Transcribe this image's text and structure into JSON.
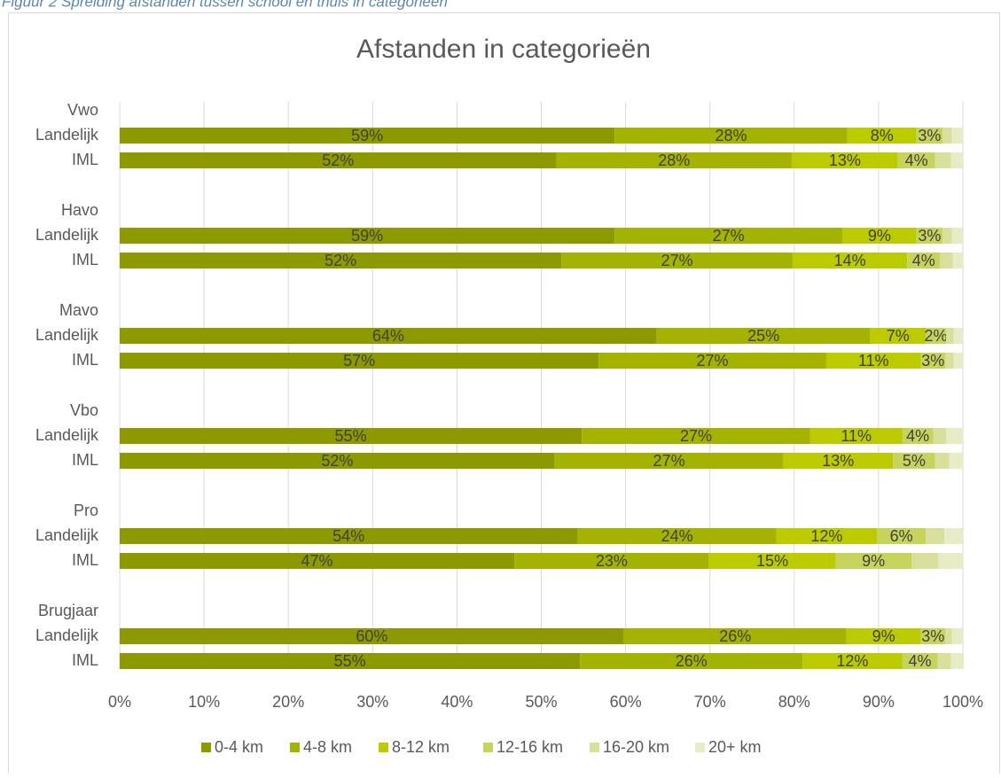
{
  "caption": "Figuur 2 Spreiding afstanden tussen school en thuis in categorieën",
  "chart_data": {
    "type": "bar",
    "orientation": "horizontal",
    "stacked": true,
    "title": "Afstanden in categorieën",
    "groups": [
      "Vwo",
      "Havo",
      "Mavo",
      "Vbo",
      "Pro",
      "Brugjaar"
    ],
    "categories": [
      "Landelijk",
      "IML",
      "Landelijk",
      "IML",
      "Landelijk",
      "IML",
      "Landelijk",
      "IML",
      "Landelijk",
      "IML",
      "Landelijk",
      "IML"
    ],
    "series": [
      {
        "name": "0-4 km",
        "color": "#8c9a00",
        "values": [
          58.7,
          51.8,
          58.7,
          52.4,
          63.7,
          56.8,
          54.8,
          51.6,
          54.3,
          46.8,
          59.8,
          54.6
        ],
        "value_labels": [
          "59%",
          "52%",
          "59%",
          "52%",
          "64%",
          "57%",
          "55%",
          "52%",
          "54%",
          "47%",
          "60%",
          "55%"
        ]
      },
      {
        "name": "4-8 km",
        "color": "#a4b200",
        "values": [
          27.6,
          27.9,
          27.0,
          27.4,
          25.3,
          27.0,
          27.1,
          27.1,
          23.6,
          23.1,
          26.4,
          26.4
        ],
        "value_labels": [
          "28%",
          "28%",
          "27%",
          "27%",
          "25%",
          "27%",
          "27%",
          "27%",
          "24%",
          "23%",
          "26%",
          "26%"
        ]
      },
      {
        "name": "8-12 km",
        "color": "#bccb00",
        "values": [
          8.2,
          12.6,
          8.8,
          13.6,
          6.6,
          11.2,
          10.9,
          13.0,
          11.9,
          15.0,
          8.8,
          11.8
        ],
        "value_labels": [
          "8%",
          "13%",
          "9%",
          "14%",
          "7%",
          "11%",
          "11%",
          "13%",
          "12%",
          "15%",
          "9%",
          "12%"
        ]
      },
      {
        "name": "12-16 km",
        "color": "#c6d45c",
        "values": [
          3.1,
          4.4,
          3.1,
          3.9,
          2.4,
          2.9,
          3.7,
          5.0,
          5.8,
          9.0,
          2.9,
          4.2
        ],
        "value_labels": [
          "3%",
          "4%",
          "3%",
          "4%",
          "2%",
          "3%",
          "4%",
          "5%",
          "6%",
          "9%",
          "3%",
          "4%"
        ]
      },
      {
        "name": "16-20 km",
        "color": "#d8e09c",
        "values": [
          1.1,
          1.9,
          1.1,
          1.5,
          0.9,
          1.0,
          1.5,
          1.7,
          2.2,
          3.2,
          0.8,
          1.6
        ]
      },
      {
        "name": "20+ km",
        "color": "#e7ecc6",
        "values": [
          1.3,
          1.4,
          1.3,
          1.2,
          1.1,
          1.1,
          2.0,
          1.6,
          2.2,
          2.9,
          1.3,
          1.5
        ]
      }
    ],
    "xlim": [
      0,
      100
    ],
    "xticks": [
      {
        "value": 0,
        "label": "0%"
      },
      {
        "value": 10,
        "label": "10%"
      },
      {
        "value": 20,
        "label": "20%"
      },
      {
        "value": 30,
        "label": "30%"
      },
      {
        "value": 40,
        "label": "40%"
      },
      {
        "value": 50,
        "label": "50%"
      },
      {
        "value": 60,
        "label": "60%"
      },
      {
        "value": 70,
        "label": "70%"
      },
      {
        "value": 80,
        "label": "80%"
      },
      {
        "value": 90,
        "label": "90%"
      },
      {
        "value": 100,
        "label": "100%"
      }
    ],
    "grid": true,
    "legend": "bottom"
  }
}
